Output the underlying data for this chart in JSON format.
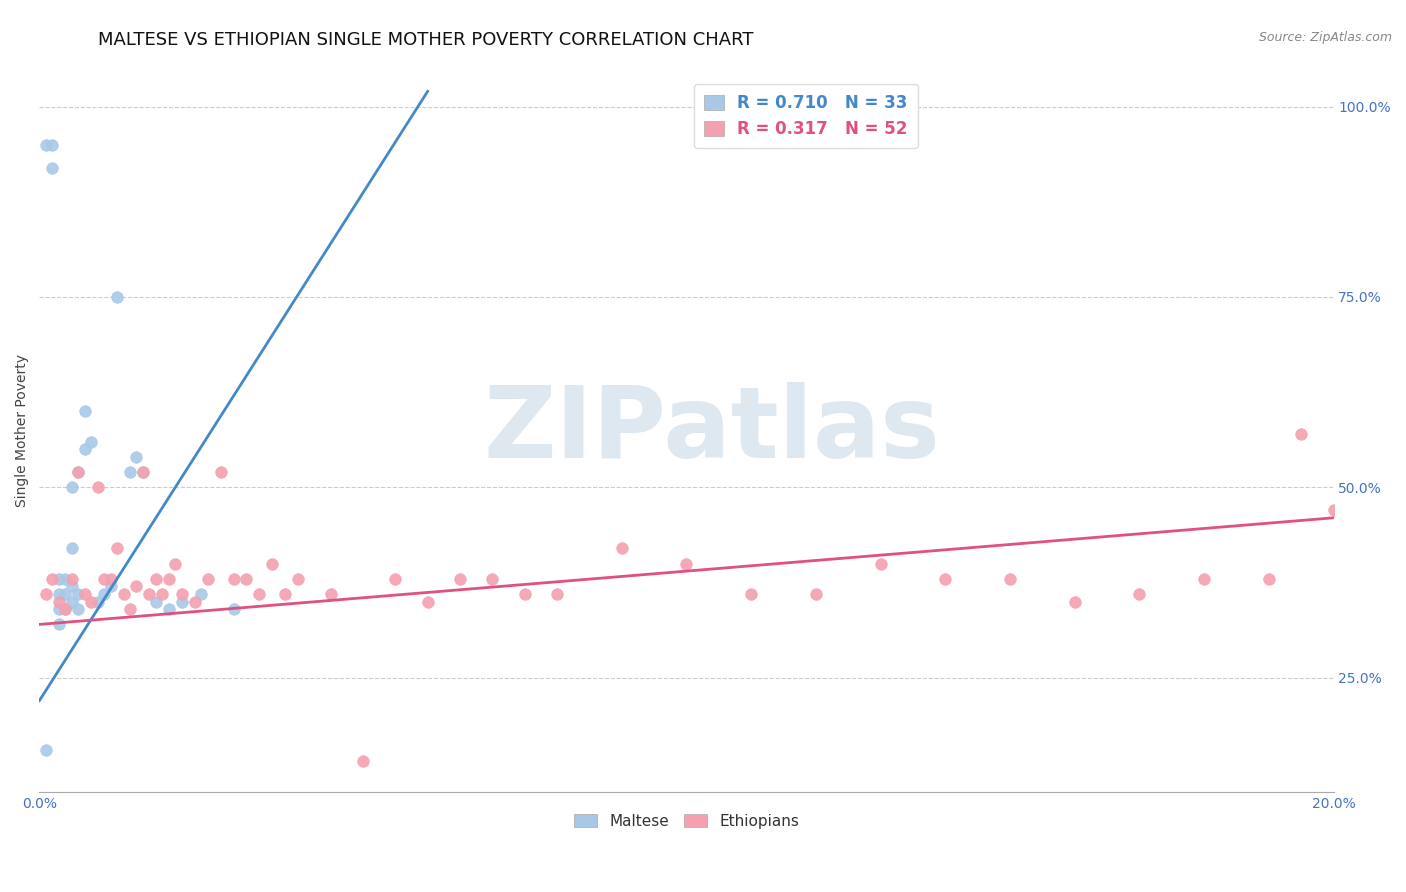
{
  "title": "MALTESE VS ETHIOPIAN SINGLE MOTHER POVERTY CORRELATION CHART",
  "source_text": "Source: ZipAtlas.com",
  "ylabel": "Single Mother Poverty",
  "xlim": [
    0.0,
    0.2
  ],
  "ylim": [
    0.1,
    1.05
  ],
  "xticks": [
    0.0,
    0.2
  ],
  "xtick_labels": [
    "0.0%",
    "20.0%"
  ],
  "yticks": [
    0.25,
    0.5,
    0.75,
    1.0
  ],
  "ytick_labels": [
    "25.0%",
    "50.0%",
    "75.0%",
    "100.0%"
  ],
  "maltese_R": 0.71,
  "maltese_N": 33,
  "ethiopian_R": 0.317,
  "ethiopian_N": 52,
  "maltese_color": "#a8c8e8",
  "ethiopian_color": "#f4a0b0",
  "maltese_line_color": "#4488cc",
  "ethiopian_line_color": "#e05080",
  "watermark": "ZIPatlas",
  "watermark_color": "#dde8f0",
  "title_fontsize": 13,
  "axis_label_fontsize": 10,
  "tick_fontsize": 10,
  "legend_fontsize": 12,
  "maltese_x": [
    0.001,
    0.001,
    0.002,
    0.002,
    0.003,
    0.003,
    0.003,
    0.003,
    0.004,
    0.004,
    0.004,
    0.005,
    0.005,
    0.005,
    0.005,
    0.006,
    0.006,
    0.006,
    0.007,
    0.007,
    0.008,
    0.009,
    0.01,
    0.011,
    0.012,
    0.014,
    0.015,
    0.016,
    0.018,
    0.02,
    0.022,
    0.025,
    0.03
  ],
  "maltese_y": [
    0.155,
    0.95,
    0.92,
    0.95,
    0.32,
    0.34,
    0.36,
    0.38,
    0.34,
    0.36,
    0.38,
    0.35,
    0.37,
    0.42,
    0.5,
    0.34,
    0.36,
    0.52,
    0.55,
    0.6,
    0.56,
    0.35,
    0.36,
    0.37,
    0.75,
    0.52,
    0.54,
    0.52,
    0.35,
    0.34,
    0.35,
    0.36,
    0.34
  ],
  "ethiopian_x": [
    0.001,
    0.002,
    0.003,
    0.004,
    0.005,
    0.006,
    0.007,
    0.008,
    0.009,
    0.01,
    0.011,
    0.012,
    0.013,
    0.014,
    0.015,
    0.016,
    0.017,
    0.018,
    0.019,
    0.02,
    0.021,
    0.022,
    0.024,
    0.026,
    0.028,
    0.03,
    0.032,
    0.034,
    0.036,
    0.038,
    0.04,
    0.045,
    0.05,
    0.055,
    0.06,
    0.065,
    0.07,
    0.075,
    0.08,
    0.09,
    0.1,
    0.11,
    0.12,
    0.13,
    0.14,
    0.15,
    0.16,
    0.17,
    0.18,
    0.19,
    0.195,
    0.2
  ],
  "ethiopian_y": [
    0.36,
    0.38,
    0.35,
    0.34,
    0.38,
    0.52,
    0.36,
    0.35,
    0.5,
    0.38,
    0.38,
    0.42,
    0.36,
    0.34,
    0.37,
    0.52,
    0.36,
    0.38,
    0.36,
    0.38,
    0.4,
    0.36,
    0.35,
    0.38,
    0.52,
    0.38,
    0.38,
    0.36,
    0.4,
    0.36,
    0.38,
    0.36,
    0.14,
    0.38,
    0.35,
    0.38,
    0.38,
    0.36,
    0.36,
    0.42,
    0.4,
    0.36,
    0.36,
    0.4,
    0.38,
    0.38,
    0.35,
    0.36,
    0.38,
    0.38,
    0.57,
    0.47
  ],
  "maltese_trend_x": [
    0.0,
    0.06
  ],
  "maltese_trend_y": [
    0.22,
    1.02
  ],
  "ethiopian_trend_x": [
    0.0,
    0.2
  ],
  "ethiopian_trend_y": [
    0.32,
    0.46
  ]
}
